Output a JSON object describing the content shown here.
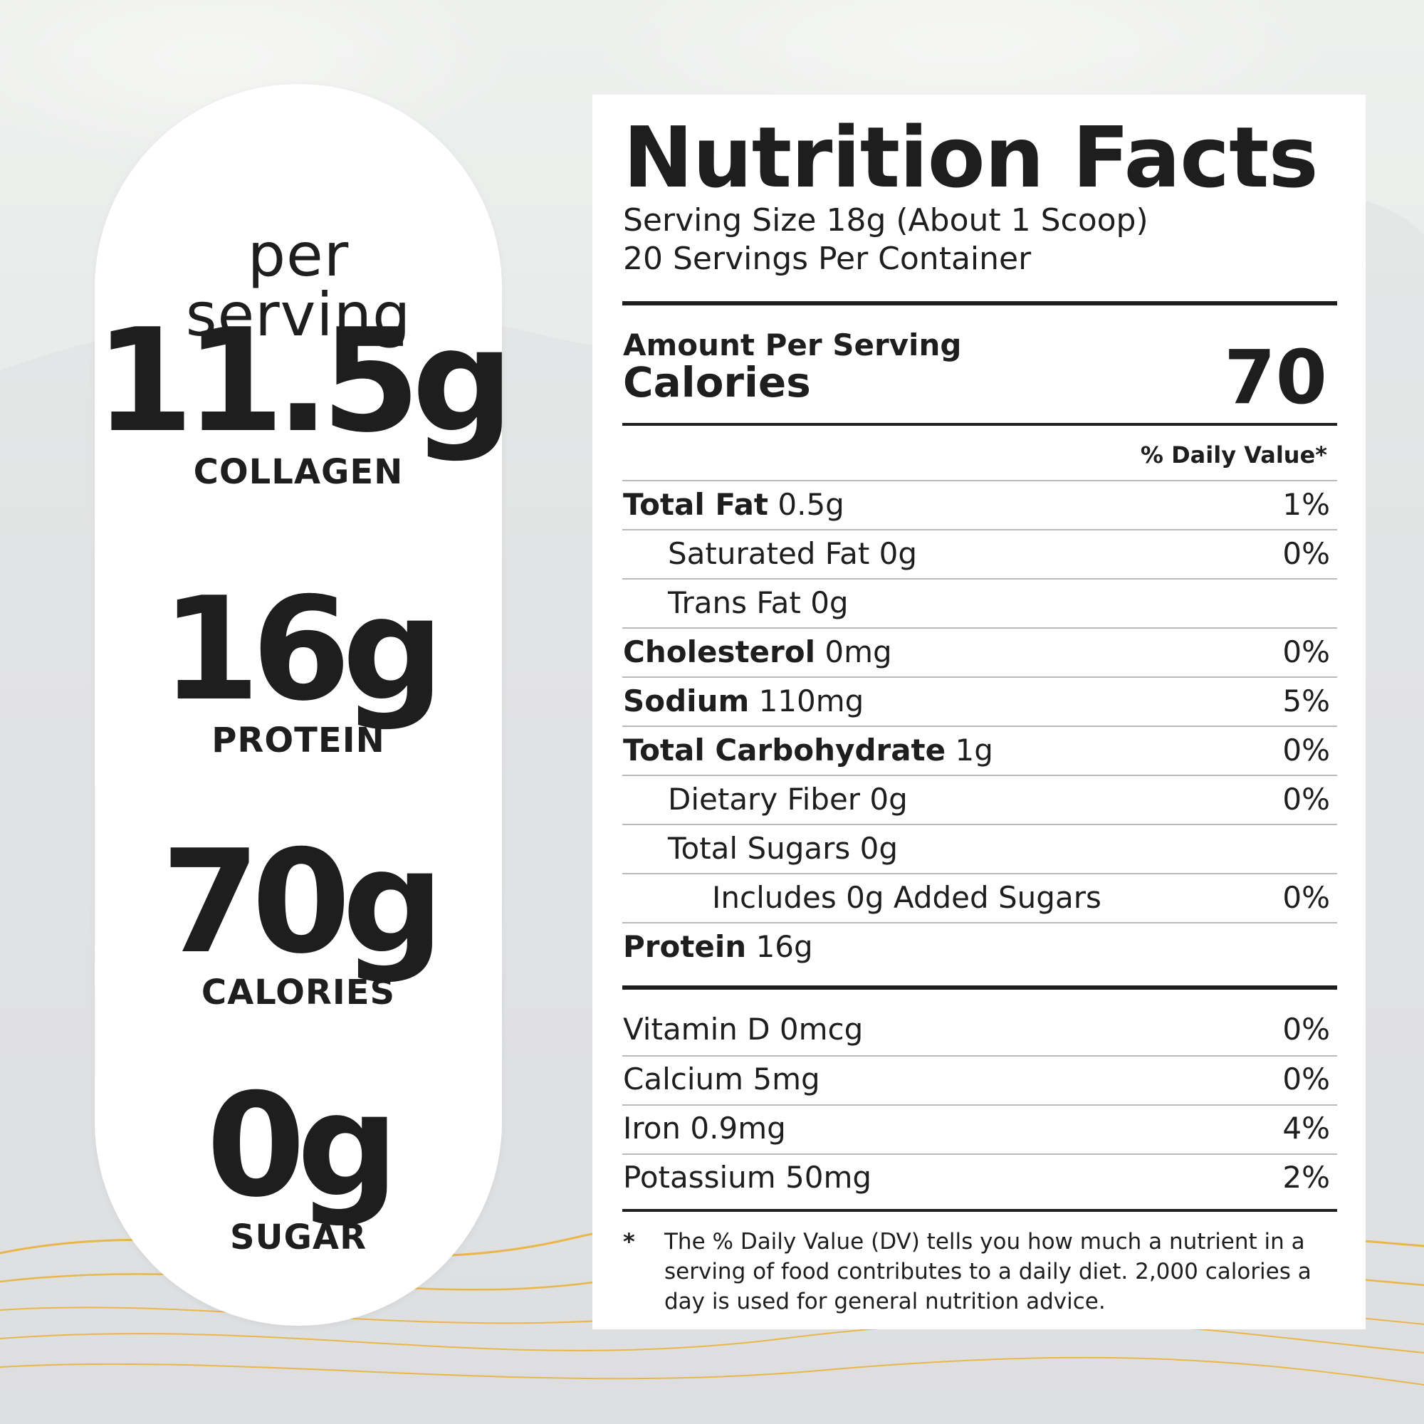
{
  "colors": {
    "background": "#e6e8e8",
    "accent_lines": "#e9b64a",
    "text": "#1e1e1e",
    "panel": "#ffffff"
  },
  "stats_pill": {
    "header_line1": "per",
    "header_line2": "serving",
    "items": [
      {
        "value": "11.5g",
        "label": "COLLAGEN"
      },
      {
        "value": "16g",
        "label": "PROTEIN"
      },
      {
        "value": "70g",
        "label": "CALORIES"
      },
      {
        "value": "0g",
        "label": "SUGAR"
      }
    ]
  },
  "nutrition_facts": {
    "title": "Nutrition Facts",
    "serving_size": "Serving Size 18g (About 1 Scoop)",
    "servings_per_container": "20 Servings Per Container",
    "amount_per_serving": "Amount Per Serving",
    "calories_label": "Calories",
    "calories_value": "70",
    "daily_value_header": "% Daily Value*",
    "nutrients": [
      {
        "name": "Total Fat",
        "amount": " 0.5g",
        "dv": "1%"
      },
      {
        "name": "",
        "amount": "Saturated Fat 0g",
        "dv": "0%"
      },
      {
        "name": "",
        "amount": "Trans Fat 0g",
        "dv": ""
      },
      {
        "name": "Cholesterol",
        "amount": " 0mg",
        "dv": "0%"
      },
      {
        "name": "Sodium",
        "amount": " 110mg",
        "dv": "5%"
      },
      {
        "name": "Total Carbohydrate",
        "amount": " 1g",
        "dv": "0%"
      },
      {
        "name": "",
        "amount": "Dietary Fiber 0g",
        "dv": "0%"
      },
      {
        "name": "",
        "amount": "Total Sugars 0g",
        "dv": ""
      },
      {
        "name": "",
        "amount": "Includes 0g Added Sugars",
        "dv": "0%"
      },
      {
        "name": "Protein",
        "amount": " 16g",
        "dv": ""
      }
    ],
    "vitamins": [
      {
        "amount": "Vitamin D 0mcg",
        "dv": "0%"
      },
      {
        "amount": "Calcium 5mg",
        "dv": "0%"
      },
      {
        "amount": "Iron 0.9mg",
        "dv": "4%"
      },
      {
        "amount": "Potassium 50mg",
        "dv": "2%"
      }
    ],
    "footnote_marker": "*",
    "footnote": "The % Daily Value (DV) tells you how much a nutrient in a serving of food contributes to a daily diet. 2,000 calories a day is used for general nutrition advice."
  }
}
